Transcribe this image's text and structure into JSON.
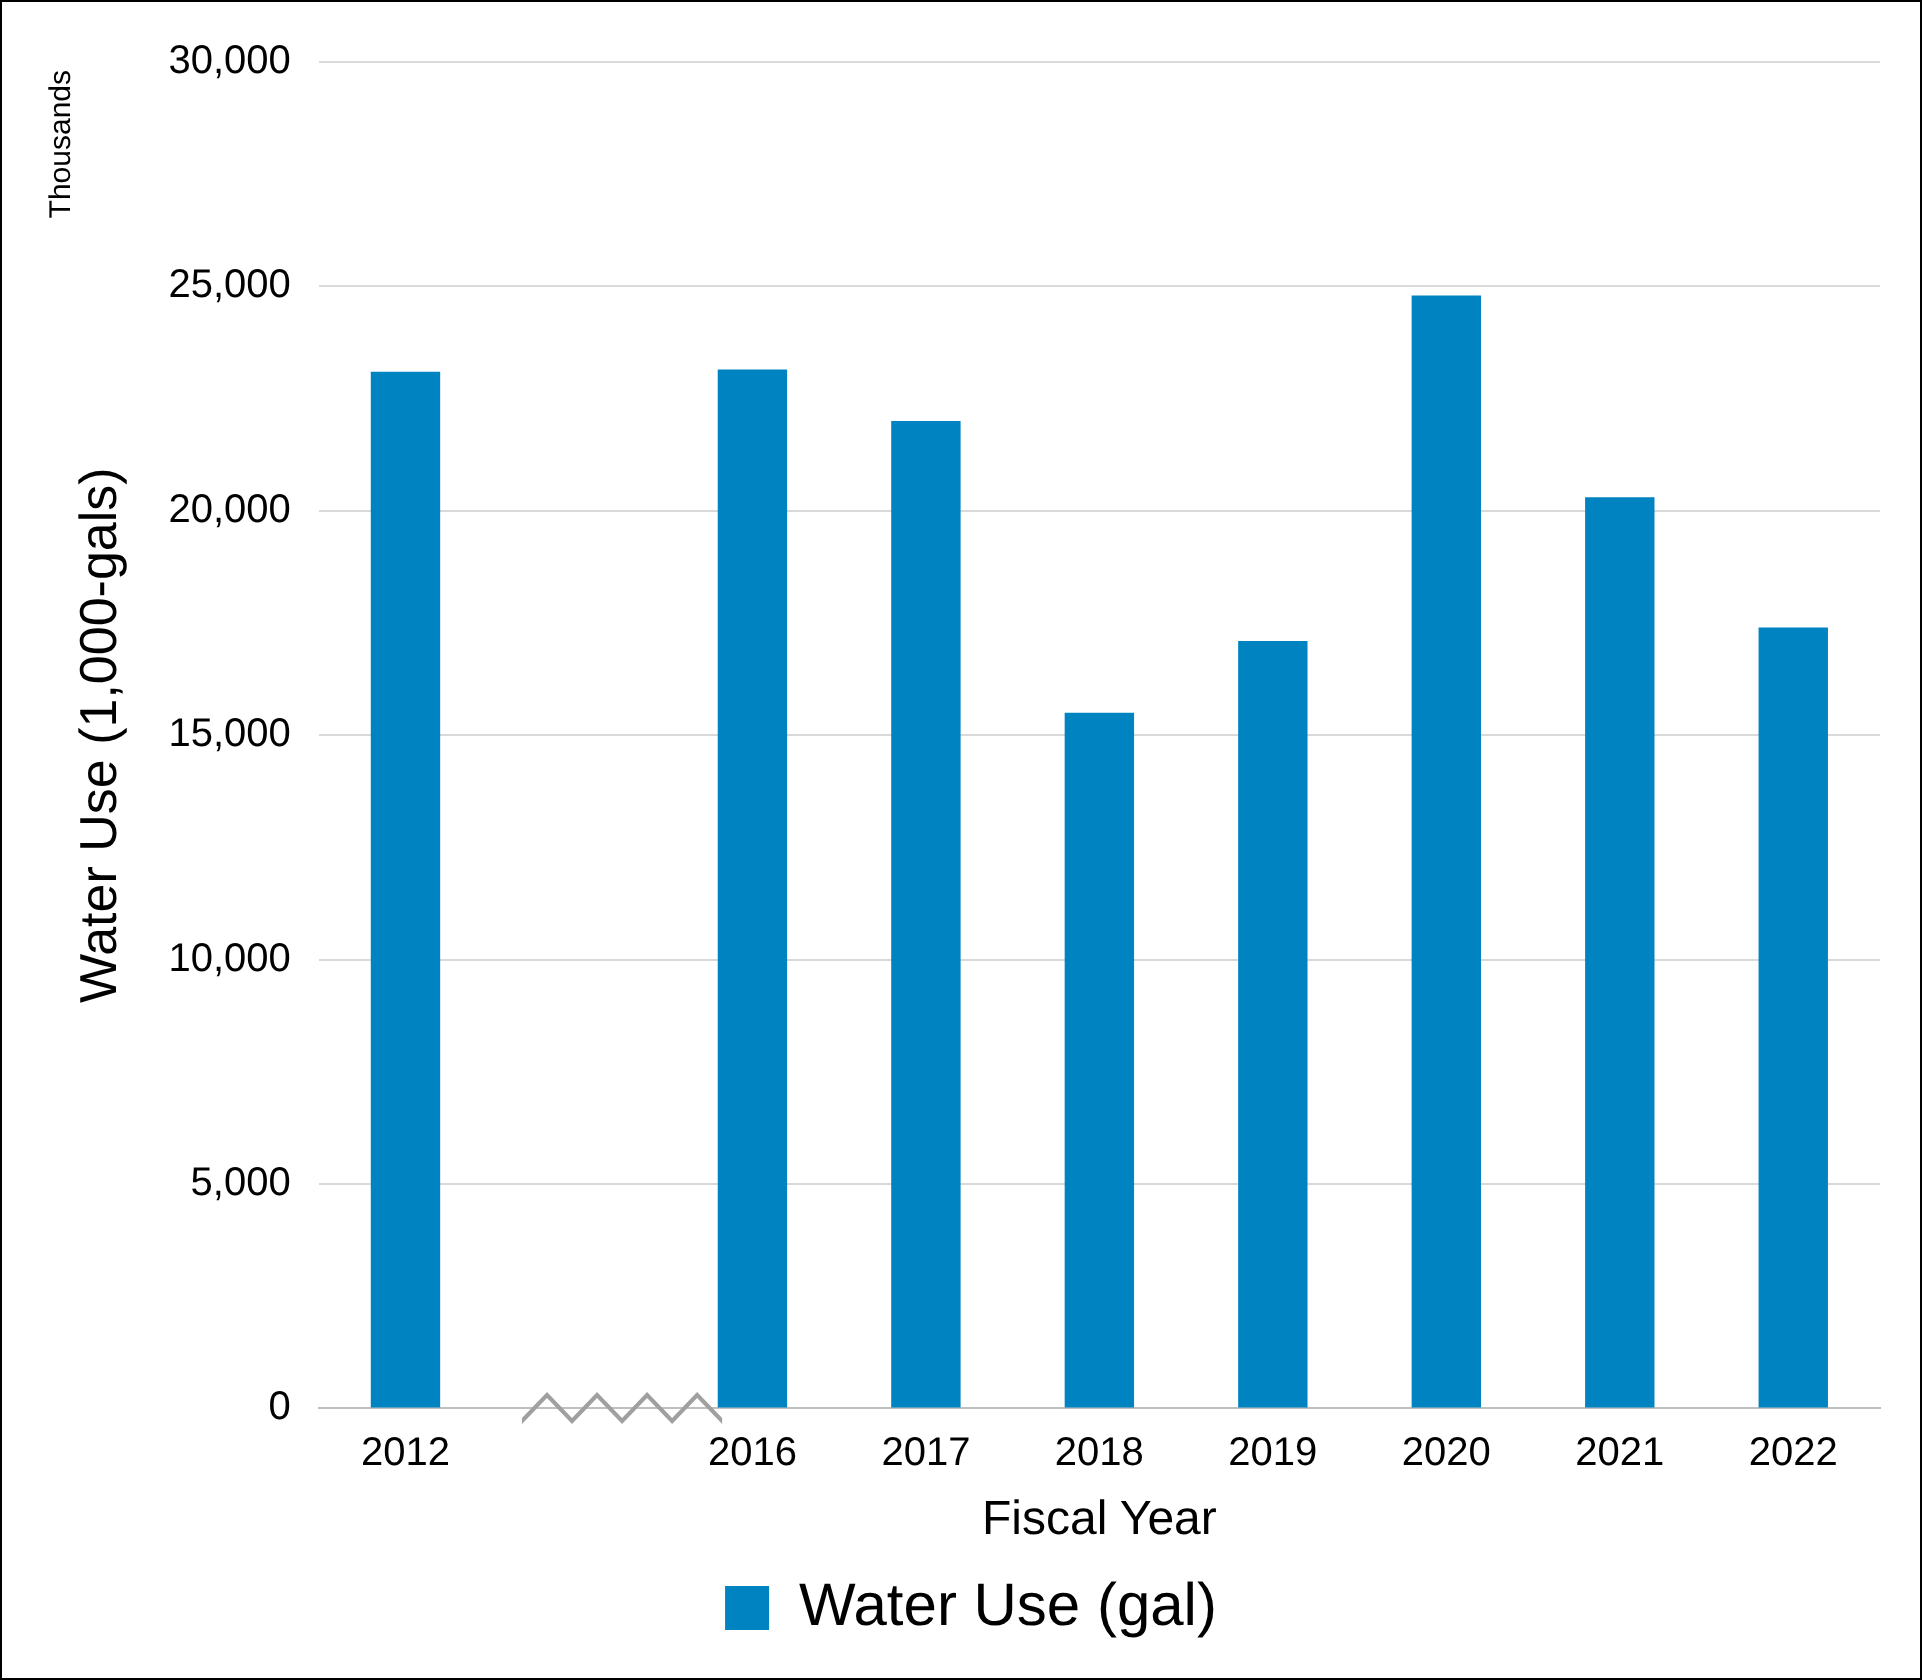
{
  "chart_data": {
    "type": "bar",
    "xlabel": "Fiscal Year",
    "ylabel": "Water Use (1,000-gals)",
    "annotations": [
      "Thousands"
    ],
    "categories": [
      "2012",
      null,
      "2016",
      "2017",
      "2018",
      "2019",
      "2020",
      "2021",
      "2022"
    ],
    "series": [
      {
        "name": "Water Use (gal)",
        "color": "#0083c1",
        "values": [
          23100,
          null,
          23150,
          22000,
          15500,
          17100,
          24800,
          20300,
          17400
        ]
      }
    ],
    "ylim": [
      0,
      30000
    ],
    "yticks": [
      {
        "value": 0,
        "label": "0"
      },
      {
        "value": 5000,
        "label": "5,000"
      },
      {
        "value": 10000,
        "label": "10,000"
      },
      {
        "value": 15000,
        "label": "15,000"
      },
      {
        "value": 20000,
        "label": "20,000"
      },
      {
        "value": 25000,
        "label": "25,000"
      },
      {
        "value": 30000,
        "label": "30,000"
      }
    ],
    "grid": "y",
    "legend": "bottom"
  }
}
